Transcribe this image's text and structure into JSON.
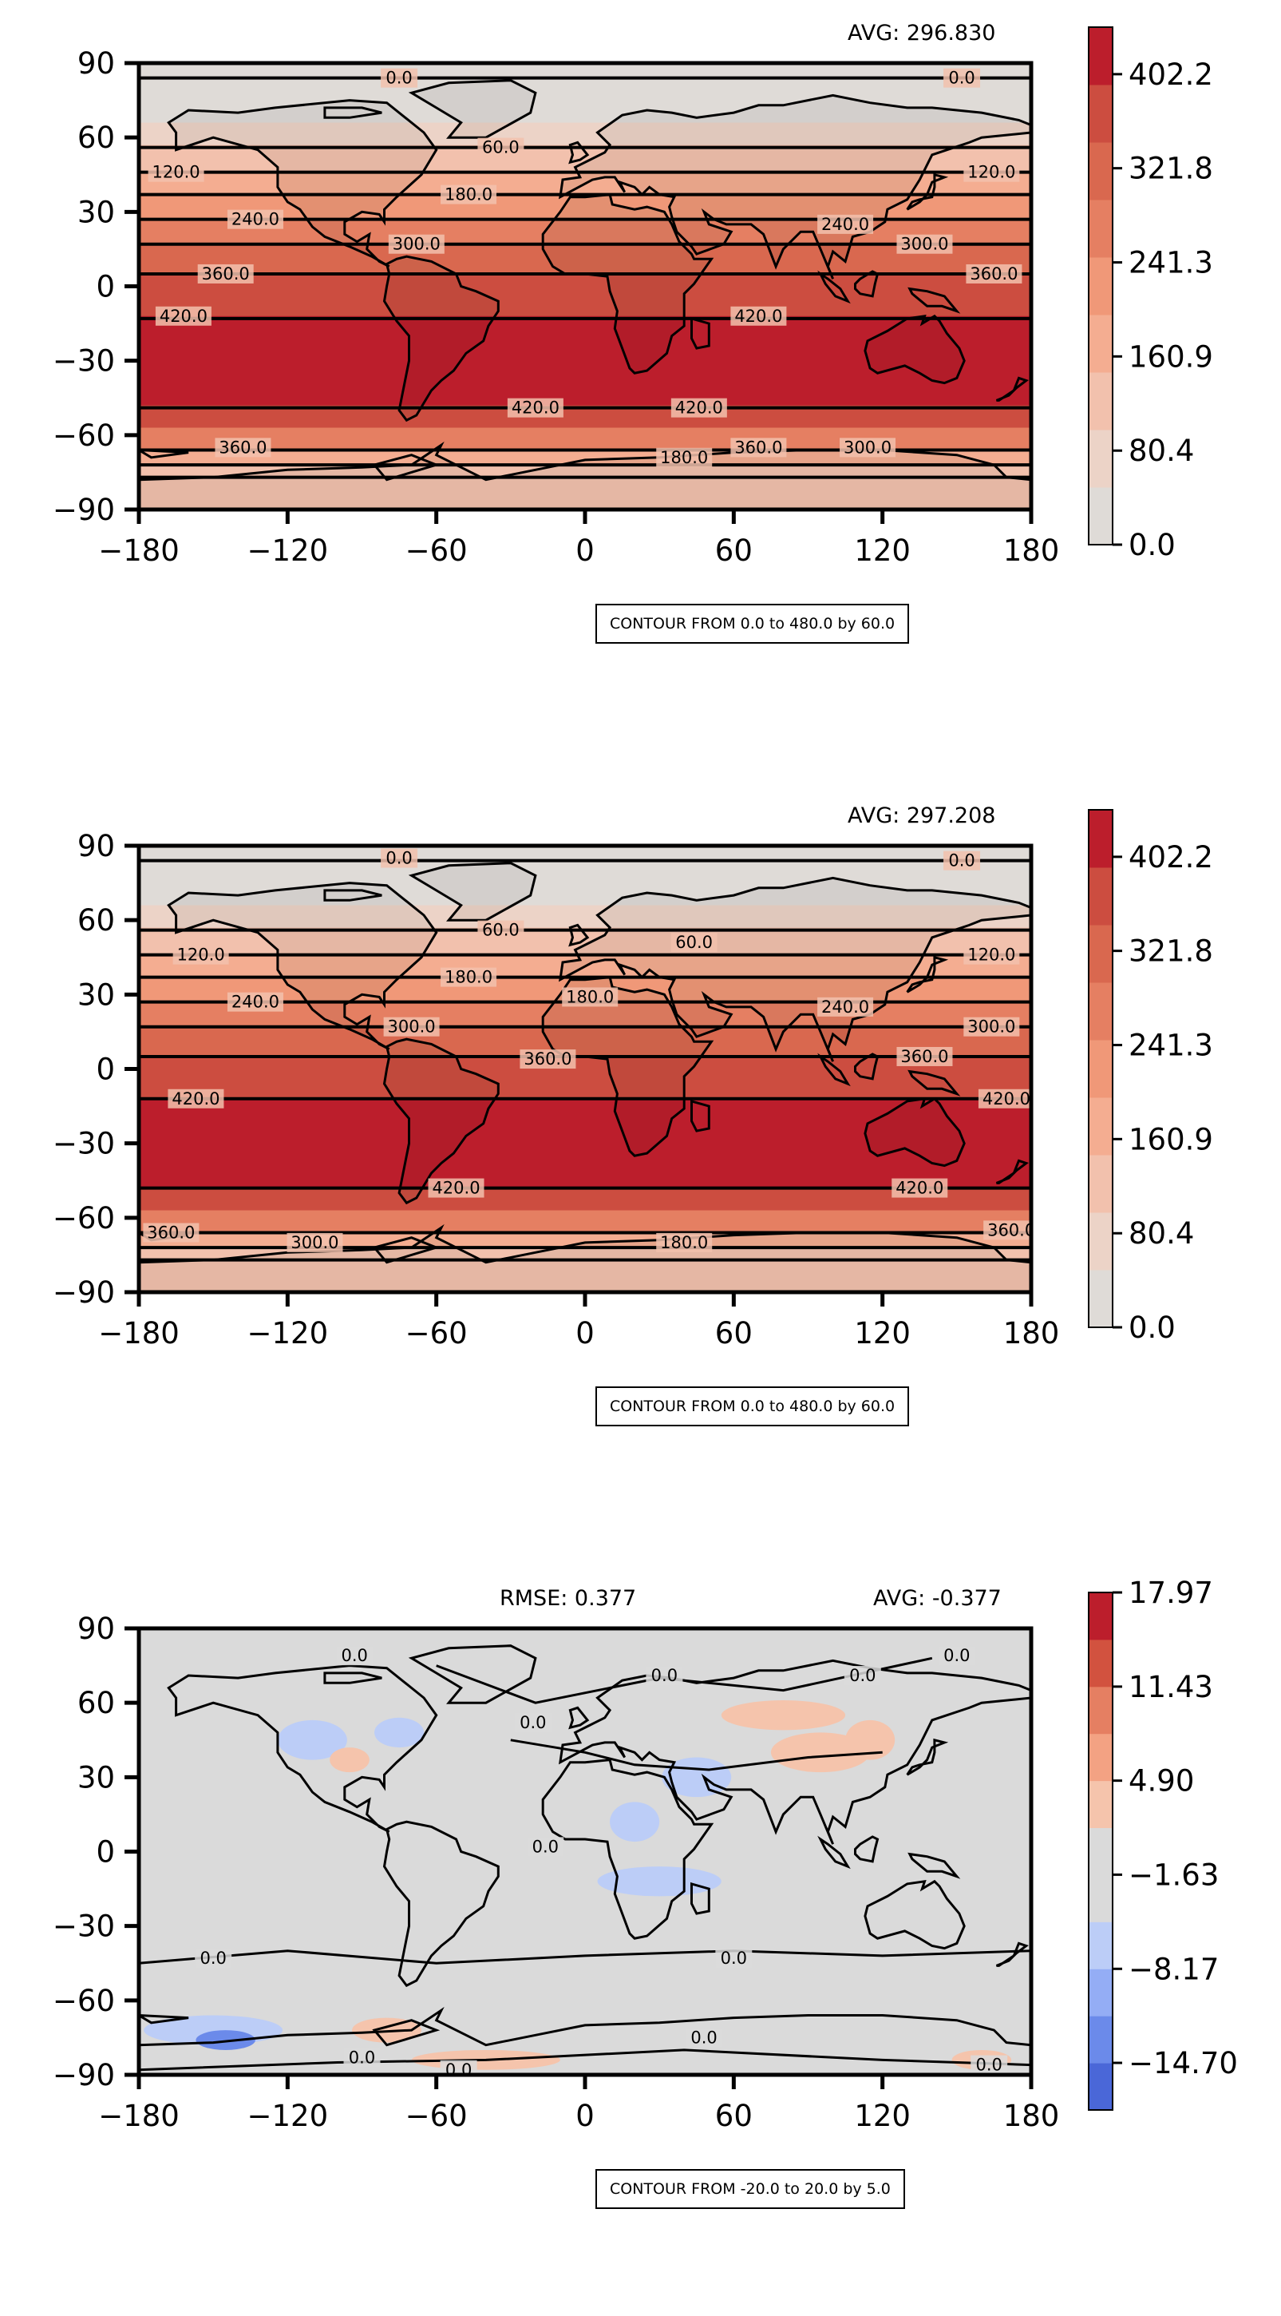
{
  "chart_data": [
    {
      "type": "contour",
      "avg_label": "AVG: 296.830",
      "contour_note": "CONTOUR FROM 0.0 to 480.0 by 60.0",
      "x_ticks": [
        "−180",
        "−120",
        "−60",
        "0",
        "60",
        "120",
        "180"
      ],
      "x_tick_values": [
        -180,
        -120,
        -60,
        0,
        60,
        120,
        180
      ],
      "y_ticks": [
        "90",
        "60",
        "30",
        "0",
        "−30",
        "−60",
        "−90"
      ],
      "y_tick_values": [
        90,
        60,
        30,
        0,
        -30,
        -60,
        -90
      ],
      "xlim": [
        -180,
        180
      ],
      "ylim": [
        -90,
        90
      ],
      "colorbar_ticks": [
        "0.0",
        "80.4",
        "160.9",
        "241.3",
        "321.8",
        "402.2"
      ],
      "colorbar_tick_values": [
        0.0,
        80.4,
        160.9,
        241.3,
        321.8,
        402.2
      ],
      "colorbar_range": [
        0.0,
        442.4
      ],
      "colorbar_colors": [
        "#dfdbd7",
        "#ecd3c7",
        "#f2c1ad",
        "#f4ad91",
        "#f09878",
        "#e57f62",
        "#d9684f",
        "#cc4d40",
        "#bc1e2c"
      ],
      "contour_levels": [
        {
          "label": "0.0",
          "lat": 84
        },
        {
          "label": "60.0",
          "lat": 56
        },
        {
          "label": "120.0",
          "lat": 46
        },
        {
          "label": "180.0",
          "lat": 37
        },
        {
          "label": "240.0",
          "lat": 27
        },
        {
          "label": "300.0",
          "lat": 17
        },
        {
          "label": "360.0",
          "lat": 5
        },
        {
          "label": "420.0",
          "lat": -13
        },
        {
          "label": "420.0",
          "lat": -49
        },
        {
          "label": "360.0",
          "lat": -66
        },
        {
          "label": "300.0",
          "lat": -72
        },
        {
          "label": "180.0",
          "lat": -77
        }
      ],
      "level_label_positions": [
        {
          "label": "0.0",
          "lon": -75,
          "lat": 84
        },
        {
          "label": "0.0",
          "lon": 152,
          "lat": 84
        },
        {
          "label": "60.0",
          "lon": -34,
          "lat": 56
        },
        {
          "label": "120.0",
          "lon": -165,
          "lat": 46
        },
        {
          "label": "120.0",
          "lon": 164,
          "lat": 46
        },
        {
          "label": "180.0",
          "lon": -47,
          "lat": 37
        },
        {
          "label": "240.0",
          "lon": -133,
          "lat": 27
        },
        {
          "label": "240.0",
          "lon": 105,
          "lat": 25
        },
        {
          "label": "300.0",
          "lon": -68,
          "lat": 17
        },
        {
          "label": "300.0",
          "lon": 137,
          "lat": 17
        },
        {
          "label": "360.0",
          "lon": -145,
          "lat": 5
        },
        {
          "label": "360.0",
          "lon": 165,
          "lat": 5
        },
        {
          "label": "420.0",
          "lon": -162,
          "lat": -12
        },
        {
          "label": "420.0",
          "lon": 70,
          "lat": -12
        },
        {
          "label": "420.0",
          "lon": -20,
          "lat": -49
        },
        {
          "label": "420.0",
          "lon": 46,
          "lat": -49
        },
        {
          "label": "360.0",
          "lon": -138,
          "lat": -65
        },
        {
          "label": "360.0",
          "lon": 70,
          "lat": -65
        },
        {
          "label": "300.0",
          "lon": 114,
          "lat": -65
        },
        {
          "label": "180.0",
          "lon": 40,
          "lat": -69
        }
      ]
    },
    {
      "type": "contour",
      "avg_label": "AVG: 297.208",
      "contour_note": "CONTOUR FROM 0.0 to 480.0 by 60.0",
      "x_ticks": [
        "−180",
        "−120",
        "−60",
        "0",
        "60",
        "120",
        "180"
      ],
      "x_tick_values": [
        -180,
        -120,
        -60,
        0,
        60,
        120,
        180
      ],
      "y_ticks": [
        "90",
        "60",
        "30",
        "0",
        "−30",
        "−60",
        "−90"
      ],
      "y_tick_values": [
        90,
        60,
        30,
        0,
        -30,
        -60,
        -90
      ],
      "xlim": [
        -180,
        180
      ],
      "ylim": [
        -90,
        90
      ],
      "colorbar_ticks": [
        "0.0",
        "80.4",
        "160.9",
        "241.3",
        "321.8",
        "402.2"
      ],
      "colorbar_tick_values": [
        0.0,
        80.4,
        160.9,
        241.3,
        321.8,
        402.2
      ],
      "colorbar_range": [
        0.0,
        442.4
      ],
      "colorbar_colors": [
        "#dfdbd7",
        "#ecd3c7",
        "#f2c1ad",
        "#f4ad91",
        "#f09878",
        "#e57f62",
        "#d9684f",
        "#cc4d40",
        "#bc1e2c"
      ],
      "contour_levels": [
        {
          "label": "0.0",
          "lat": 84
        },
        {
          "label": "60.0",
          "lat": 56
        },
        {
          "label": "120.0",
          "lat": 46
        },
        {
          "label": "180.0",
          "lat": 37
        },
        {
          "label": "240.0",
          "lat": 27
        },
        {
          "label": "300.0",
          "lat": 17
        },
        {
          "label": "360.0",
          "lat": 5
        },
        {
          "label": "420.0",
          "lat": -12
        },
        {
          "label": "420.0",
          "lat": -48
        },
        {
          "label": "360.0",
          "lat": -66
        },
        {
          "label": "300.0",
          "lat": -72
        },
        {
          "label": "180.0",
          "lat": -77
        }
      ],
      "level_label_positions": [
        {
          "label": "0.0",
          "lon": -75,
          "lat": 85
        },
        {
          "label": "0.0",
          "lon": 152,
          "lat": 84
        },
        {
          "label": "60.0",
          "lon": -34,
          "lat": 56
        },
        {
          "label": "60.0",
          "lon": 44,
          "lat": 51
        },
        {
          "label": "120.0",
          "lon": -155,
          "lat": 46
        },
        {
          "label": "120.0",
          "lon": 164,
          "lat": 46
        },
        {
          "label": "180.0",
          "lon": -47,
          "lat": 37
        },
        {
          "label": "180.0",
          "lon": 2,
          "lat": 29
        },
        {
          "label": "240.0",
          "lon": -133,
          "lat": 27
        },
        {
          "label": "240.0",
          "lon": 105,
          "lat": 25
        },
        {
          "label": "300.0",
          "lon": -70,
          "lat": 17
        },
        {
          "label": "300.0",
          "lon": 164,
          "lat": 17
        },
        {
          "label": "360.0",
          "lon": -15,
          "lat": 4
        },
        {
          "label": "360.0",
          "lon": 137,
          "lat": 5
        },
        {
          "label": "420.0",
          "lon": -157,
          "lat": -12
        },
        {
          "label": "420.0",
          "lon": 170,
          "lat": -12
        },
        {
          "label": "420.0",
          "lon": -52,
          "lat": -48
        },
        {
          "label": "420.0",
          "lon": 135,
          "lat": -48
        },
        {
          "label": "360.0",
          "lon": -167,
          "lat": -66
        },
        {
          "label": "360.0",
          "lon": 172,
          "lat": -65
        },
        {
          "label": "300.0",
          "lon": -109,
          "lat": -70
        },
        {
          "label": "180.0",
          "lon": 40,
          "lat": -70
        }
      ]
    },
    {
      "type": "contour",
      "rmse_label": "RMSE: 0.377",
      "avg_label": "AVG: -0.377",
      "contour_note": "CONTOUR FROM -20.0 to 20.0 by 5.0",
      "x_ticks": [
        "−180",
        "−120",
        "−60",
        "0",
        "60",
        "120",
        "180"
      ],
      "x_tick_values": [
        -180,
        -120,
        -60,
        0,
        60,
        120,
        180
      ],
      "y_ticks": [
        "90",
        "60",
        "30",
        "0",
        "−30",
        "−60",
        "−90"
      ],
      "y_tick_values": [
        90,
        60,
        30,
        0,
        -30,
        -60,
        -90
      ],
      "xlim": [
        -180,
        180
      ],
      "ylim": [
        -90,
        90
      ],
      "colorbar_ticks": [
        "−14.70",
        "−8.17",
        "−1.63",
        "4.90",
        "11.43",
        "17.97"
      ],
      "colorbar_tick_values": [
        -14.7,
        -8.17,
        -1.63,
        4.9,
        11.43,
        17.97
      ],
      "colorbar_range": [
        -17.97,
        17.97
      ],
      "colorbar_colors": [
        "#4a67d8",
        "#6b8aea",
        "#94adf5",
        "#bccdf7",
        "#dadada",
        "#dadada",
        "#f5c4ac",
        "#f3a283",
        "#e57f62",
        "#d2523f",
        "#bc1e2c"
      ],
      "contour_levels": [
        {
          "label": "0.0",
          "lat": 40
        }
      ],
      "level_label_positions": [
        {
          "label": "0.0",
          "lon": -93,
          "lat": 79
        },
        {
          "label": "0.0",
          "lon": 32,
          "lat": 71
        },
        {
          "label": "0.0",
          "lon": 112,
          "lat": 71
        },
        {
          "label": "0.0",
          "lon": 150,
          "lat": 79
        },
        {
          "label": "0.0",
          "lon": -21,
          "lat": 52
        },
        {
          "label": "0.0",
          "lon": -16,
          "lat": 2
        },
        {
          "label": "0.0",
          "lon": 60,
          "lat": -43
        },
        {
          "label": "0.0",
          "lon": -150,
          "lat": -43
        },
        {
          "label": "0.0",
          "lon": -90,
          "lat": -83
        },
        {
          "label": "0.0",
          "lon": 48,
          "lat": -75
        },
        {
          "label": "0.0",
          "lon": 163,
          "lat": -86
        },
        {
          "label": "0.0",
          "lon": -51,
          "lat": -88
        }
      ]
    }
  ]
}
